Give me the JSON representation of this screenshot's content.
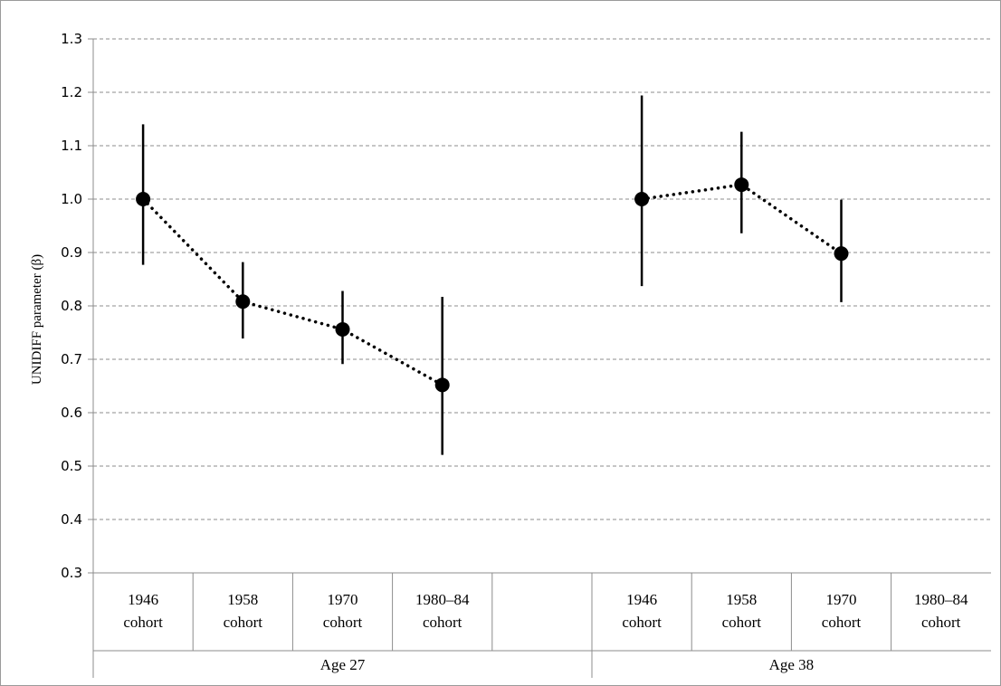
{
  "chart_data": {
    "type": "scatter",
    "title": "",
    "ylabel": "UNIDIFF parameter  (β)",
    "ylim": [
      0.3,
      1.3
    ],
    "yticks": [
      0.3,
      0.4,
      0.5,
      0.6,
      0.7,
      0.8,
      0.9,
      1.0,
      1.1,
      1.2,
      1.3
    ],
    "ytick_labels": [
      "0.3",
      "0.4",
      "0.5",
      "0.6",
      "0.7",
      "0.8",
      "0.9",
      "1.0",
      "1.1",
      "1.2",
      "1.3"
    ],
    "grid": "horizontal-dashed",
    "marker_color": "#000000",
    "groups": [
      {
        "label": "Age 27",
        "categories": [
          {
            "line1": "1946",
            "line2": "cohort"
          },
          {
            "line1": "1958",
            "line2": "cohort"
          },
          {
            "line1": "1970",
            "line2": "cohort"
          },
          {
            "line1": "1980–84",
            "line2": "cohort"
          },
          {
            "line1": "",
            "line2": ""
          }
        ],
        "points": [
          {
            "value": 1.0,
            "low": 0.877,
            "high": 1.14
          },
          {
            "value": 0.808,
            "low": 0.739,
            "high": 0.882
          },
          {
            "value": 0.756,
            "low": 0.691,
            "high": 0.828
          },
          {
            "value": 0.652,
            "low": 0.521,
            "high": 0.817
          }
        ]
      },
      {
        "label": "Age 38",
        "categories": [
          {
            "line1": "1946",
            "line2": "cohort"
          },
          {
            "line1": "1958",
            "line2": "cohort"
          },
          {
            "line1": "1970",
            "line2": "cohort"
          },
          {
            "line1": "1980–84",
            "line2": "cohort"
          }
        ],
        "points": [
          {
            "value": 1.0,
            "low": 0.837,
            "high": 1.194
          },
          {
            "value": 1.027,
            "low": 0.936,
            "high": 1.126
          },
          {
            "value": 0.898,
            "low": 0.807,
            "high": 0.999
          }
        ]
      }
    ]
  }
}
